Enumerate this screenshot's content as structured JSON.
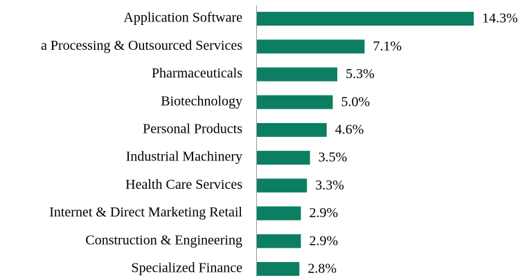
{
  "chart_data": {
    "type": "bar",
    "orientation": "horizontal",
    "categories": [
      "Application Software",
      "a Processing & Outsourced Services",
      "Pharmaceuticals",
      "Biotechnology",
      "Personal Products",
      "Industrial Machinery",
      "Health Care Services",
      "Internet & Direct Marketing Retail",
      "Construction & Engineering",
      "Specialized Finance"
    ],
    "values": [
      14.3,
      7.1,
      5.3,
      5.0,
      4.6,
      3.5,
      3.3,
      2.9,
      2.9,
      2.8
    ],
    "value_labels": [
      "14.3%",
      "7.1%",
      "5.3%",
      "5.0%",
      "4.6%",
      "3.5%",
      "3.3%",
      "2.9%",
      "2.9%",
      "2.8%"
    ],
    "color": "#0c7f62"
  }
}
